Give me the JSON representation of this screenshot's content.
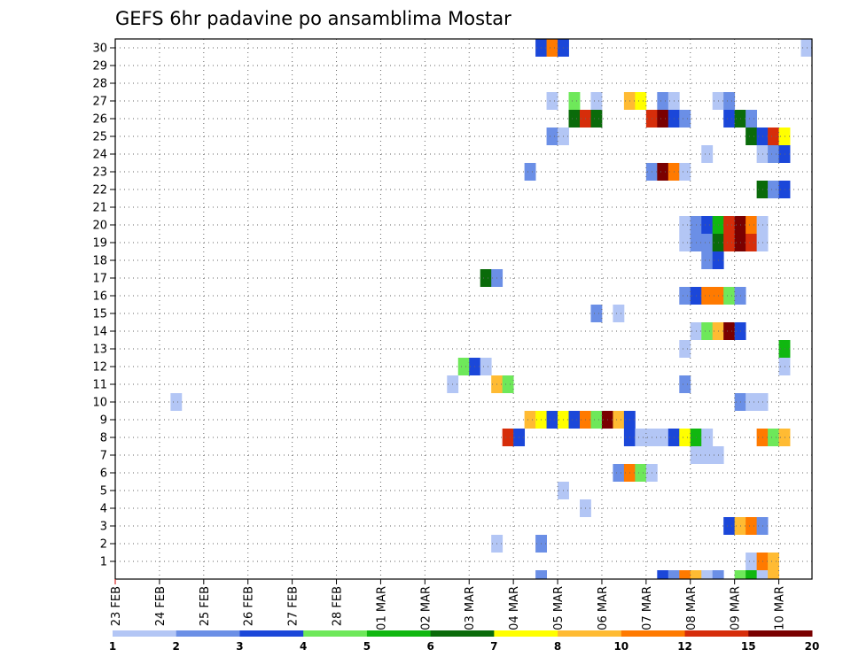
{
  "chart_data": {
    "type": "heatmap",
    "title": "GEFS 6hr padavine po ansamblima Mostar",
    "xlabel": "",
    "ylabel": "",
    "x_tick_labels": [
      "23 FEB",
      "24 FEB",
      "25 FEB",
      "26 FEB",
      "27 FEB",
      "28 FEB",
      "01 MAR",
      "02 MAR",
      "03 MAR",
      "04 MAR",
      "05 MAR",
      "06 MAR",
      "07 MAR",
      "08 MAR",
      "09 MAR",
      "10 MAR"
    ],
    "x_range_days": [
      0,
      15.75
    ],
    "x_step_hours": 6,
    "y_tick_labels": [
      "1",
      "2",
      "3",
      "4",
      "5",
      "6",
      "7",
      "8",
      "9",
      "10",
      "11",
      "12",
      "13",
      "14",
      "15",
      "16",
      "17",
      "18",
      "19",
      "20",
      "21",
      "22",
      "23",
      "24",
      "25",
      "26",
      "27",
      "28",
      "29",
      "30"
    ],
    "y_range": [
      0,
      30
    ],
    "grid": "dotted",
    "legend": {
      "placement": "bottom",
      "colors": [
        "#b3c6f5",
        "#6b8fe6",
        "#1b47d9",
        "#6ee85a",
        "#10b710",
        "#0a6b0a",
        "#ffff00",
        "#ffbb33",
        "#ff7a00",
        "#d62d0a",
        "#7a0000"
      ],
      "labels": [
        "1",
        "2",
        "3",
        "4",
        "5",
        "6",
        "7",
        "8",
        "10",
        "12",
        "15",
        "20"
      ]
    },
    "color_scale_note": "color index 1..11 maps to the legend bins",
    "cells": [
      {
        "member": 30,
        "step": 38,
        "c": 3
      },
      {
        "member": 30,
        "step": 39,
        "c": 9
      },
      {
        "member": 30,
        "step": 40,
        "c": 3
      },
      {
        "member": 30,
        "step": 62,
        "c": 1
      },
      {
        "member": 27,
        "step": 39,
        "c": 1
      },
      {
        "member": 27,
        "step": 41,
        "c": 4
      },
      {
        "member": 27,
        "step": 43,
        "c": 1
      },
      {
        "member": 27,
        "step": 46,
        "c": 8
      },
      {
        "member": 27,
        "step": 47,
        "c": 7
      },
      {
        "member": 27,
        "step": 49,
        "c": 2
      },
      {
        "member": 27,
        "step": 50,
        "c": 1
      },
      {
        "member": 27,
        "step": 54,
        "c": 1
      },
      {
        "member": 27,
        "step": 55,
        "c": 2
      },
      {
        "member": 26,
        "step": 41,
        "c": 6
      },
      {
        "member": 26,
        "step": 42,
        "c": 10
      },
      {
        "member": 26,
        "step": 43,
        "c": 6
      },
      {
        "member": 26,
        "step": 48,
        "c": 10
      },
      {
        "member": 26,
        "step": 49,
        "c": 11
      },
      {
        "member": 26,
        "step": 50,
        "c": 3
      },
      {
        "member": 26,
        "step": 51,
        "c": 2
      },
      {
        "member": 26,
        "step": 55,
        "c": 3
      },
      {
        "member": 26,
        "step": 56,
        "c": 6
      },
      {
        "member": 26,
        "step": 57,
        "c": 2
      },
      {
        "member": 25,
        "step": 39,
        "c": 2
      },
      {
        "member": 25,
        "step": 40,
        "c": 1
      },
      {
        "member": 25,
        "step": 57,
        "c": 6
      },
      {
        "member": 25,
        "step": 58,
        "c": 3
      },
      {
        "member": 25,
        "step": 59,
        "c": 10
      },
      {
        "member": 25,
        "step": 60,
        "c": 7
      },
      {
        "member": 24,
        "step": 53,
        "c": 1
      },
      {
        "member": 24,
        "step": 58,
        "c": 1
      },
      {
        "member": 24,
        "step": 59,
        "c": 2
      },
      {
        "member": 24,
        "step": 60,
        "c": 3
      },
      {
        "member": 23,
        "step": 37,
        "c": 2
      },
      {
        "member": 23,
        "step": 48,
        "c": 2
      },
      {
        "member": 23,
        "step": 49,
        "c": 11
      },
      {
        "member": 23,
        "step": 50,
        "c": 9
      },
      {
        "member": 23,
        "step": 51,
        "c": 1
      },
      {
        "member": 22,
        "step": 58,
        "c": 6
      },
      {
        "member": 22,
        "step": 59,
        "c": 2
      },
      {
        "member": 22,
        "step": 60,
        "c": 3
      },
      {
        "member": 20,
        "step": 51,
        "c": 1
      },
      {
        "member": 20,
        "step": 52,
        "c": 2
      },
      {
        "member": 20,
        "step": 53,
        "c": 3
      },
      {
        "member": 20,
        "step": 54,
        "c": 5
      },
      {
        "member": 20,
        "step": 55,
        "c": 10
      },
      {
        "member": 20,
        "step": 56,
        "c": 11
      },
      {
        "member": 20,
        "step": 57,
        "c": 9
      },
      {
        "member": 20,
        "step": 58,
        "c": 1
      },
      {
        "member": 19,
        "step": 51,
        "c": 1
      },
      {
        "member": 19,
        "step": 52,
        "c": 2
      },
      {
        "member": 19,
        "step": 53,
        "c": 2
      },
      {
        "member": 19,
        "step": 54,
        "c": 6
      },
      {
        "member": 19,
        "step": 55,
        "c": 10
      },
      {
        "member": 19,
        "step": 56,
        "c": 11
      },
      {
        "member": 19,
        "step": 57,
        "c": 10
      },
      {
        "member": 19,
        "step": 58,
        "c": 1
      },
      {
        "member": 18,
        "step": 53,
        "c": 2
      },
      {
        "member": 18,
        "step": 54,
        "c": 3
      },
      {
        "member": 17,
        "step": 33,
        "c": 6
      },
      {
        "member": 17,
        "step": 34,
        "c": 2
      },
      {
        "member": 16,
        "step": 51,
        "c": 2
      },
      {
        "member": 16,
        "step": 52,
        "c": 3
      },
      {
        "member": 16,
        "step": 53,
        "c": 9
      },
      {
        "member": 16,
        "step": 54,
        "c": 9
      },
      {
        "member": 16,
        "step": 55,
        "c": 4
      },
      {
        "member": 16,
        "step": 56,
        "c": 2
      },
      {
        "member": 15,
        "step": 43,
        "c": 2
      },
      {
        "member": 15,
        "step": 45,
        "c": 1
      },
      {
        "member": 14,
        "step": 52,
        "c": 1
      },
      {
        "member": 14,
        "step": 53,
        "c": 4
      },
      {
        "member": 14,
        "step": 54,
        "c": 8
      },
      {
        "member": 14,
        "step": 55,
        "c": 11
      },
      {
        "member": 14,
        "step": 56,
        "c": 3
      },
      {
        "member": 13,
        "step": 51,
        "c": 1
      },
      {
        "member": 13,
        "step": 60,
        "c": 5
      },
      {
        "member": 12,
        "step": 31,
        "c": 4
      },
      {
        "member": 12,
        "step": 32,
        "c": 3
      },
      {
        "member": 12,
        "step": 33,
        "c": 1
      },
      {
        "member": 12,
        "step": 60,
        "c": 1
      },
      {
        "member": 11,
        "step": 30,
        "c": 1
      },
      {
        "member": 11,
        "step": 34,
        "c": 8
      },
      {
        "member": 11,
        "step": 35,
        "c": 4
      },
      {
        "member": 11,
        "step": 51,
        "c": 2
      },
      {
        "member": 10,
        "step": 5,
        "c": 1
      },
      {
        "member": 10,
        "step": 56,
        "c": 2
      },
      {
        "member": 10,
        "step": 57,
        "c": 1
      },
      {
        "member": 10,
        "step": 58,
        "c": 1
      },
      {
        "member": 9,
        "step": 37,
        "c": 8
      },
      {
        "member": 9,
        "step": 38,
        "c": 7
      },
      {
        "member": 9,
        "step": 39,
        "c": 3
      },
      {
        "member": 9,
        "step": 40,
        "c": 7
      },
      {
        "member": 9,
        "step": 41,
        "c": 3
      },
      {
        "member": 9,
        "step": 42,
        "c": 9
      },
      {
        "member": 9,
        "step": 43,
        "c": 4
      },
      {
        "member": 9,
        "step": 44,
        "c": 11
      },
      {
        "member": 9,
        "step": 45,
        "c": 8
      },
      {
        "member": 9,
        "step": 46,
        "c": 3
      },
      {
        "member": 8,
        "step": 35,
        "c": 10
      },
      {
        "member": 8,
        "step": 36,
        "c": 3
      },
      {
        "member": 8,
        "step": 46,
        "c": 3
      },
      {
        "member": 8,
        "step": 47,
        "c": 1
      },
      {
        "member": 8,
        "step": 48,
        "c": 1
      },
      {
        "member": 8,
        "step": 49,
        "c": 1
      },
      {
        "member": 8,
        "step": 50,
        "c": 3
      },
      {
        "member": 8,
        "step": 51,
        "c": 7
      },
      {
        "member": 8,
        "step": 52,
        "c": 5
      },
      {
        "member": 8,
        "step": 53,
        "c": 1
      },
      {
        "member": 8,
        "step": 58,
        "c": 9
      },
      {
        "member": 8,
        "step": 59,
        "c": 4
      },
      {
        "member": 8,
        "step": 60,
        "c": 8
      },
      {
        "member": 7,
        "step": 52,
        "c": 1
      },
      {
        "member": 7,
        "step": 53,
        "c": 1
      },
      {
        "member": 7,
        "step": 54,
        "c": 1
      },
      {
        "member": 6,
        "step": 45,
        "c": 2
      },
      {
        "member": 6,
        "step": 46,
        "c": 9
      },
      {
        "member": 6,
        "step": 47,
        "c": 4
      },
      {
        "member": 6,
        "step": 48,
        "c": 1
      },
      {
        "member": 5,
        "step": 40,
        "c": 1
      },
      {
        "member": 4,
        "step": 42,
        "c": 1
      },
      {
        "member": 3,
        "step": 55,
        "c": 3
      },
      {
        "member": 3,
        "step": 56,
        "c": 8
      },
      {
        "member": 3,
        "step": 57,
        "c": 9
      },
      {
        "member": 3,
        "step": 58,
        "c": 2
      },
      {
        "member": 2,
        "step": 34,
        "c": 1
      },
      {
        "member": 2,
        "step": 38,
        "c": 2
      },
      {
        "member": 1,
        "step": 57,
        "c": 1
      },
      {
        "member": 1,
        "step": 58,
        "c": 9
      },
      {
        "member": 1,
        "step": 59,
        "c": 8
      },
      {
        "member": 0,
        "step": 38,
        "c": 2
      },
      {
        "member": 0,
        "step": 49,
        "c": 3
      },
      {
        "member": 0,
        "step": 50,
        "c": 2
      },
      {
        "member": 0,
        "step": 51,
        "c": 9
      },
      {
        "member": 0,
        "step": 52,
        "c": 8
      },
      {
        "member": 0,
        "step": 53,
        "c": 1
      },
      {
        "member": 0,
        "step": 54,
        "c": 2
      },
      {
        "member": 0,
        "step": 56,
        "c": 4
      },
      {
        "member": 0,
        "step": 57,
        "c": 5
      },
      {
        "member": 0,
        "step": 58,
        "c": 1
      },
      {
        "member": 0,
        "step": 59,
        "c": 8
      }
    ]
  }
}
